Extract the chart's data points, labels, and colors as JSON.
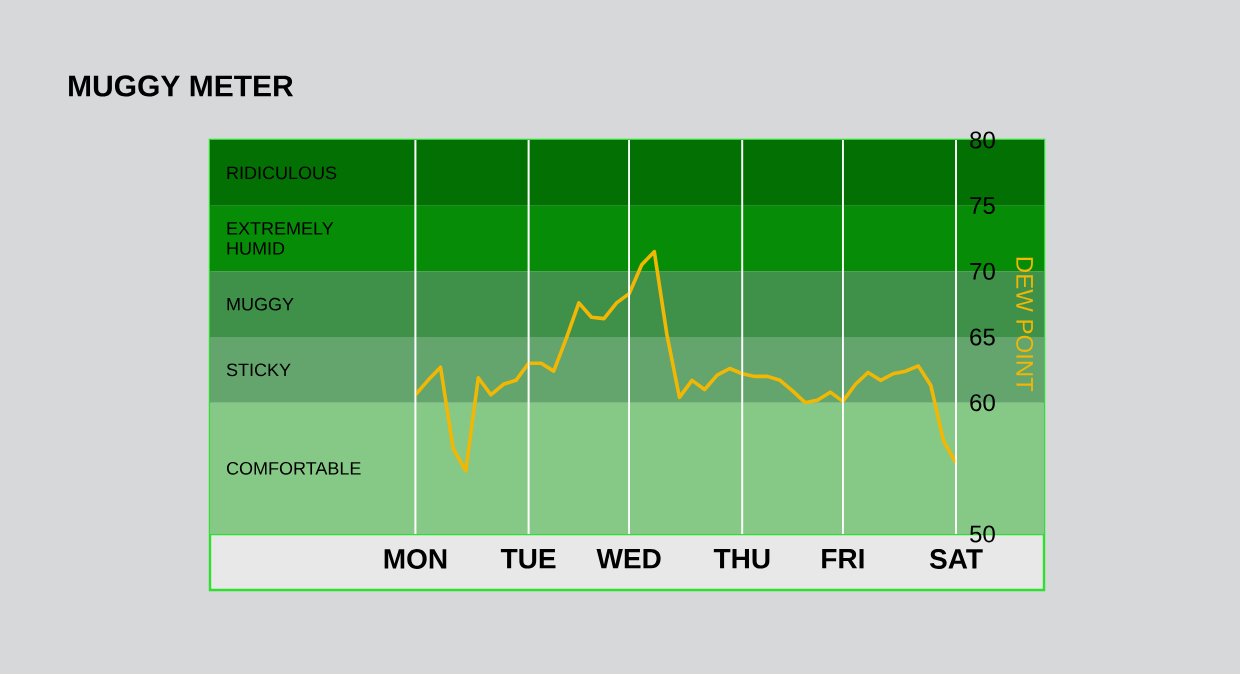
{
  "chart_data": {
    "type": "line",
    "title": "MUGGY METER",
    "ylabel": "DEW POINT",
    "categories": [
      "MON",
      null,
      null,
      null,
      null,
      null,
      null,
      null,
      null,
      "TUE",
      null,
      null,
      null,
      null,
      null,
      null,
      null,
      "WED",
      null,
      null,
      null,
      null,
      null,
      null,
      null,
      null,
      "THU",
      null,
      null,
      null,
      null,
      null,
      null,
      null,
      "FRI",
      null,
      null,
      null,
      null,
      null,
      null,
      null,
      null,
      "SAT"
    ],
    "values": [
      60.6,
      61.7,
      62.7,
      56.5,
      54.8,
      61.9,
      60.6,
      61.4,
      61.7,
      63.0,
      63.0,
      62.4,
      64.9,
      67.6,
      66.5,
      66.4,
      67.6,
      68.3,
      70.5,
      71.5,
      65.2,
      60.4,
      61.7,
      61.0,
      62.1,
      62.6,
      62.2,
      62.0,
      62.0,
      61.7,
      60.9,
      60.0,
      60.2,
      60.8,
      60.1,
      61.4,
      62.3,
      61.7,
      62.2,
      62.4,
      62.8,
      61.3,
      57.1,
      55.4
    ],
    "color": "#f2b705",
    "ylim": [
      50,
      80
    ],
    "yticks": [
      50,
      60,
      65,
      70,
      75,
      80
    ],
    "grid": "x",
    "bands": [
      {
        "axis": "y",
        "from": 75,
        "to": 80,
        "label": "RIDICULOUS",
        "color": "#037003"
      },
      {
        "axis": "y",
        "from": 70,
        "to": 75,
        "label": "EXTREMELY HUMID",
        "color": "#078c07"
      },
      {
        "axis": "y",
        "from": 65,
        "to": 70,
        "label": "MUGGY",
        "color": "#3f9149"
      },
      {
        "axis": "y",
        "from": 60,
        "to": 65,
        "label": "STICKY",
        "color": "#63a56c"
      },
      {
        "axis": "y",
        "from": 50,
        "to": 60,
        "label": "COMFORTABLE",
        "color": "#86c987"
      }
    ]
  }
}
